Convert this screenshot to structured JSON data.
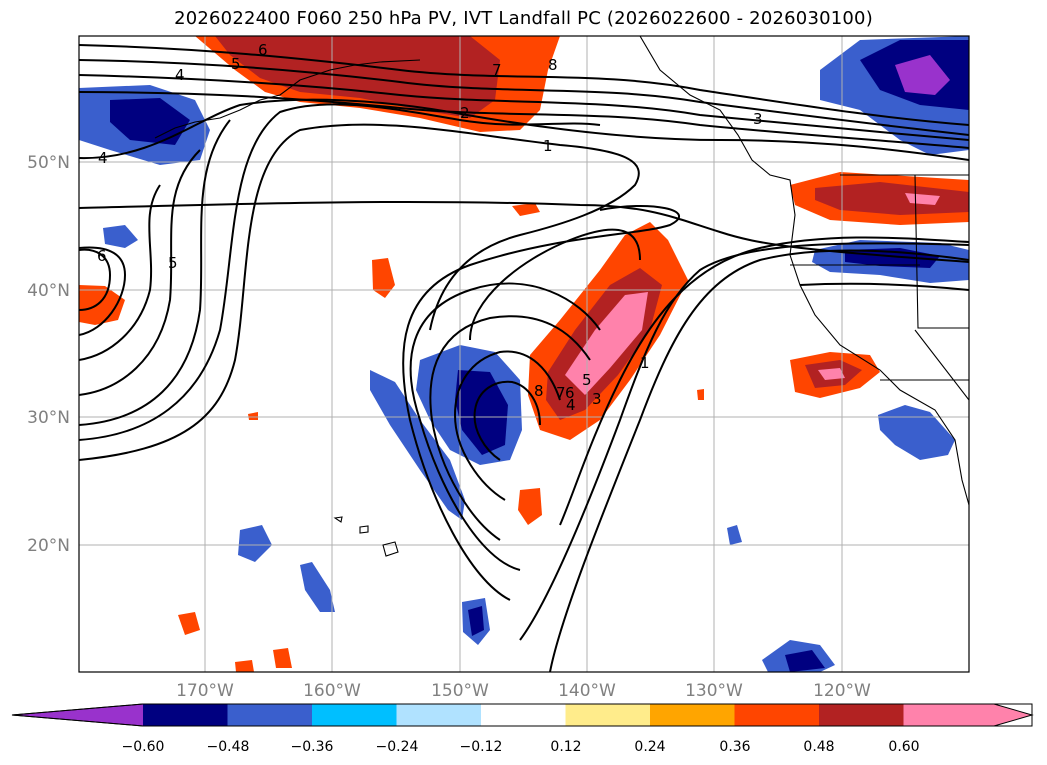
{
  "title": "2026022400 F060 250 hPa PV, IVT Landfall PC (2026022600 - 2026030100)",
  "axes": {
    "lon_labels": [
      "170°W",
      "160°W",
      "150°W",
      "140°W",
      "130°W",
      "120°W"
    ],
    "lat_labels": [
      "50°N",
      "40°N",
      "30°N",
      "20°N"
    ]
  },
  "colorbar": {
    "tick_labels": [
      "−0.60",
      "−0.48",
      "−0.36",
      "−0.24",
      "−0.12",
      "0.12",
      "0.24",
      "0.36",
      "0.48",
      "0.60"
    ],
    "colors": [
      "#9932cc",
      "#000080",
      "#3a5fcd",
      "#00bfff",
      "#b0e2ff",
      "#ffffff",
      "#ffec8b",
      "#ffa500",
      "#ff4500",
      "#b22222",
      "#ff82ab"
    ]
  },
  "contour_labels": [
    "6",
    "5",
    "4",
    "4",
    "7",
    "8",
    "2",
    "1",
    "3",
    "6",
    "5",
    "8",
    "7",
    "6",
    "5",
    "4",
    "3",
    "1"
  ]
}
